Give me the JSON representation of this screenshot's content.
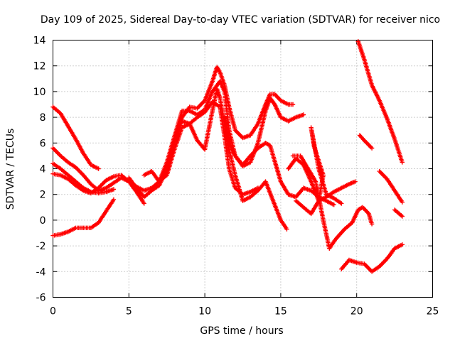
{
  "chart_data": {
    "type": "scatter",
    "title": "Day 109 of 2025, Sidereal Day-to-day VTEC variation (SDTVAR) for receiver nico",
    "xlabel": "GPS time / hours",
    "ylabel": "SDTVAR / TECUs",
    "xlim": [
      0,
      25
    ],
    "ylim": [
      -6,
      14
    ],
    "xticks": [
      0,
      5,
      10,
      15,
      20,
      25
    ],
    "yticks": [
      -6,
      -4,
      -2,
      0,
      2,
      4,
      6,
      8,
      10,
      12,
      14
    ],
    "xtick_labels": [
      "0",
      "5",
      "10",
      "15",
      "20",
      "25"
    ],
    "ytick_labels": [
      "-6",
      "-4",
      "-2",
      "0",
      "2",
      "4",
      "6",
      "8",
      "10",
      "12",
      "14"
    ],
    "grid": true,
    "marker": "+",
    "color": "#ff0000",
    "series": [
      {
        "name": "track-1",
        "points": [
          [
            0.0,
            8.8
          ],
          [
            0.5,
            8.3
          ],
          [
            1.0,
            7.3
          ],
          [
            1.5,
            6.3
          ],
          [
            2.0,
            5.2
          ],
          [
            2.5,
            4.3
          ],
          [
            3.0,
            4.0
          ]
        ]
      },
      {
        "name": "track-2",
        "points": [
          [
            0.0,
            5.6
          ],
          [
            0.5,
            5.0
          ],
          [
            1.0,
            4.5
          ],
          [
            1.5,
            4.1
          ],
          [
            2.0,
            3.5
          ],
          [
            2.5,
            2.8
          ],
          [
            3.0,
            2.3
          ],
          [
            3.5,
            2.5
          ],
          [
            4.0,
            2.9
          ],
          [
            4.5,
            3.3
          ],
          [
            5.0,
            3.0
          ],
          [
            5.5,
            2.2
          ],
          [
            6.0,
            1.3
          ]
        ]
      },
      {
        "name": "track-3",
        "points": [
          [
            0.0,
            4.4
          ],
          [
            0.5,
            4.0
          ],
          [
            1.0,
            3.5
          ],
          [
            1.5,
            3.0
          ],
          [
            2.0,
            2.5
          ],
          [
            2.5,
            2.2
          ],
          [
            3.0,
            2.1
          ],
          [
            3.5,
            2.2
          ],
          [
            4.0,
            2.4
          ]
        ]
      },
      {
        "name": "track-4",
        "points": [
          [
            0.0,
            3.6
          ],
          [
            0.5,
            3.5
          ],
          [
            1.0,
            3.2
          ],
          [
            1.5,
            2.7
          ],
          [
            2.0,
            2.3
          ],
          [
            2.5,
            2.1
          ],
          [
            3.0,
            2.5
          ],
          [
            3.5,
            3.1
          ],
          [
            4.0,
            3.4
          ],
          [
            4.5,
            3.5
          ],
          [
            5.0,
            3.0
          ],
          [
            5.5,
            2.6
          ],
          [
            6.0,
            2.3
          ],
          [
            6.5,
            2.5
          ],
          [
            7.0,
            3.0
          ],
          [
            7.5,
            4.5
          ],
          [
            8.0,
            6.5
          ],
          [
            8.5,
            8.0
          ],
          [
            9.0,
            8.8
          ],
          [
            9.5,
            8.7
          ],
          [
            10.0,
            9.3
          ],
          [
            10.5,
            10.8
          ],
          [
            10.8,
            11.9
          ],
          [
            11.0,
            11.5
          ],
          [
            11.3,
            10.5
          ],
          [
            11.6,
            8.8
          ],
          [
            12.0,
            7.0
          ],
          [
            12.5,
            6.4
          ],
          [
            13.0,
            6.6
          ],
          [
            13.5,
            7.5
          ],
          [
            14.0,
            9.0
          ],
          [
            14.3,
            9.8
          ],
          [
            14.6,
            9.8
          ],
          [
            15.0,
            9.3
          ],
          [
            15.5,
            9.0
          ],
          [
            15.8,
            9.0
          ]
        ]
      },
      {
        "name": "track-5",
        "points": [
          [
            0.0,
            -1.2
          ],
          [
            0.5,
            -1.1
          ],
          [
            1.0,
            -0.9
          ],
          [
            1.5,
            -0.6
          ],
          [
            2.0,
            -0.6
          ],
          [
            2.5,
            -0.6
          ],
          [
            3.0,
            -0.2
          ],
          [
            3.5,
            0.7
          ],
          [
            4.0,
            1.6
          ]
        ]
      },
      {
        "name": "track-6",
        "points": [
          [
            5.0,
            3.3
          ],
          [
            5.5,
            2.5
          ],
          [
            6.0,
            1.8
          ],
          [
            6.5,
            2.3
          ],
          [
            7.0,
            2.7
          ],
          [
            7.5,
            4.0
          ],
          [
            8.0,
            6.0
          ],
          [
            8.5,
            7.7
          ],
          [
            9.0,
            7.5
          ],
          [
            9.5,
            6.2
          ],
          [
            10.0,
            5.5
          ],
          [
            10.5,
            8.5
          ],
          [
            10.8,
            10.2
          ],
          [
            11.0,
            9.5
          ],
          [
            11.3,
            7.5
          ],
          [
            11.6,
            5.5
          ],
          [
            12.0,
            3.5
          ],
          [
            12.5,
            1.5
          ],
          [
            13.0,
            1.8
          ],
          [
            13.5,
            2.3
          ],
          [
            14.0,
            3.0
          ],
          [
            14.5,
            1.5
          ],
          [
            15.0,
            0.0
          ],
          [
            15.4,
            -0.7
          ]
        ]
      },
      {
        "name": "track-7",
        "points": [
          [
            6.0,
            3.5
          ],
          [
            6.5,
            3.8
          ],
          [
            7.0,
            3.0
          ],
          [
            7.5,
            3.5
          ],
          [
            8.0,
            5.5
          ],
          [
            8.5,
            7.2
          ],
          [
            9.0,
            7.5
          ],
          [
            9.5,
            8.0
          ],
          [
            10.0,
            8.4
          ],
          [
            10.5,
            9.2
          ],
          [
            11.0,
            8.8
          ],
          [
            11.3,
            6.5
          ],
          [
            11.6,
            4.0
          ],
          [
            12.0,
            2.5
          ],
          [
            12.5,
            2.0
          ],
          [
            13.0,
            2.2
          ],
          [
            13.5,
            2.5
          ]
        ]
      },
      {
        "name": "track-8",
        "points": [
          [
            7.5,
            4.0
          ],
          [
            8.0,
            6.5
          ],
          [
            8.5,
            8.5
          ],
          [
            9.0,
            8.5
          ],
          [
            9.5,
            8.2
          ],
          [
            10.0,
            8.6
          ],
          [
            10.5,
            10.0
          ],
          [
            11.0,
            10.8
          ],
          [
            11.3,
            10.0
          ],
          [
            11.6,
            7.0
          ],
          [
            12.0,
            5.0
          ],
          [
            12.5,
            4.3
          ],
          [
            13.0,
            5.0
          ],
          [
            13.5,
            5.6
          ],
          [
            14.0,
            6.0
          ],
          [
            14.3,
            5.8
          ],
          [
            14.5,
            5.0
          ],
          [
            15.0,
            3.0
          ],
          [
            15.5,
            2.0
          ],
          [
            16.0,
            1.8
          ],
          [
            16.5,
            2.5
          ],
          [
            17.0,
            2.3
          ],
          [
            17.5,
            1.8
          ],
          [
            18.0,
            1.5
          ],
          [
            18.5,
            1.2
          ]
        ]
      },
      {
        "name": "track-9",
        "points": [
          [
            11.3,
            8.0
          ],
          [
            11.6,
            6.0
          ],
          [
            12.0,
            5.0
          ],
          [
            12.5,
            4.2
          ],
          [
            13.0,
            4.5
          ],
          [
            13.5,
            6.0
          ],
          [
            14.0,
            8.5
          ],
          [
            14.3,
            9.5
          ],
          [
            14.6,
            9.0
          ],
          [
            15.0,
            8.0
          ],
          [
            15.5,
            7.7
          ],
          [
            16.0,
            8.0
          ],
          [
            16.5,
            8.2
          ]
        ]
      },
      {
        "name": "track-10",
        "points": [
          [
            15.5,
            4.0
          ],
          [
            16.0,
            4.8
          ],
          [
            16.5,
            4.3
          ],
          [
            17.0,
            3.0
          ],
          [
            17.5,
            1.5
          ],
          [
            18.0,
            1.8
          ],
          [
            18.5,
            2.2
          ],
          [
            19.0,
            2.5
          ],
          [
            19.5,
            2.8
          ],
          [
            19.9,
            3.0
          ]
        ]
      },
      {
        "name": "track-11",
        "points": [
          [
            15.8,
            5.0
          ],
          [
            16.3,
            5.0
          ],
          [
            16.8,
            4.0
          ],
          [
            17.3,
            3.0
          ],
          [
            17.8,
            0.0
          ],
          [
            18.2,
            -2.2
          ],
          [
            18.6,
            -1.5
          ],
          [
            19.2,
            -0.7
          ],
          [
            19.7,
            -0.2
          ],
          [
            20.1,
            0.8
          ],
          [
            20.4,
            1.0
          ],
          [
            20.8,
            0.5
          ],
          [
            21.0,
            -0.3
          ]
        ]
      },
      {
        "name": "track-12",
        "points": [
          [
            16.0,
            1.5
          ],
          [
            16.5,
            1.0
          ],
          [
            17.0,
            0.5
          ],
          [
            17.5,
            1.5
          ],
          [
            17.8,
            3.5
          ],
          [
            17.2,
            5.7
          ],
          [
            17.0,
            7.2
          ],
          [
            17.5,
            4.0
          ],
          [
            18.0,
            2.0
          ],
          [
            18.5,
            1.7
          ],
          [
            19.0,
            1.3
          ]
        ]
      },
      {
        "name": "track-13",
        "points": [
          [
            20.1,
            13.9
          ],
          [
            20.5,
            12.5
          ],
          [
            21.0,
            10.5
          ],
          [
            21.5,
            9.3
          ],
          [
            22.0,
            7.9
          ],
          [
            22.5,
            6.3
          ],
          [
            23.0,
            4.5
          ]
        ]
      },
      {
        "name": "track-14",
        "points": [
          [
            20.2,
            6.6
          ],
          [
            20.5,
            6.2
          ],
          [
            21.0,
            5.6
          ]
        ]
      },
      {
        "name": "track-15",
        "points": [
          [
            21.5,
            3.8
          ],
          [
            22.0,
            3.2
          ],
          [
            22.5,
            2.3
          ],
          [
            23.0,
            1.4
          ]
        ]
      },
      {
        "name": "track-16",
        "points": [
          [
            22.5,
            0.8
          ],
          [
            23.0,
            0.3
          ]
        ]
      },
      {
        "name": "track-17",
        "points": [
          [
            19.0,
            -3.8
          ],
          [
            19.5,
            -3.1
          ],
          [
            20.0,
            -3.3
          ],
          [
            20.5,
            -3.4
          ],
          [
            21.0,
            -4.0
          ],
          [
            21.5,
            -3.6
          ],
          [
            22.0,
            -3.0
          ],
          [
            22.5,
            -2.2
          ],
          [
            23.0,
            -1.9
          ]
        ]
      }
    ]
  }
}
